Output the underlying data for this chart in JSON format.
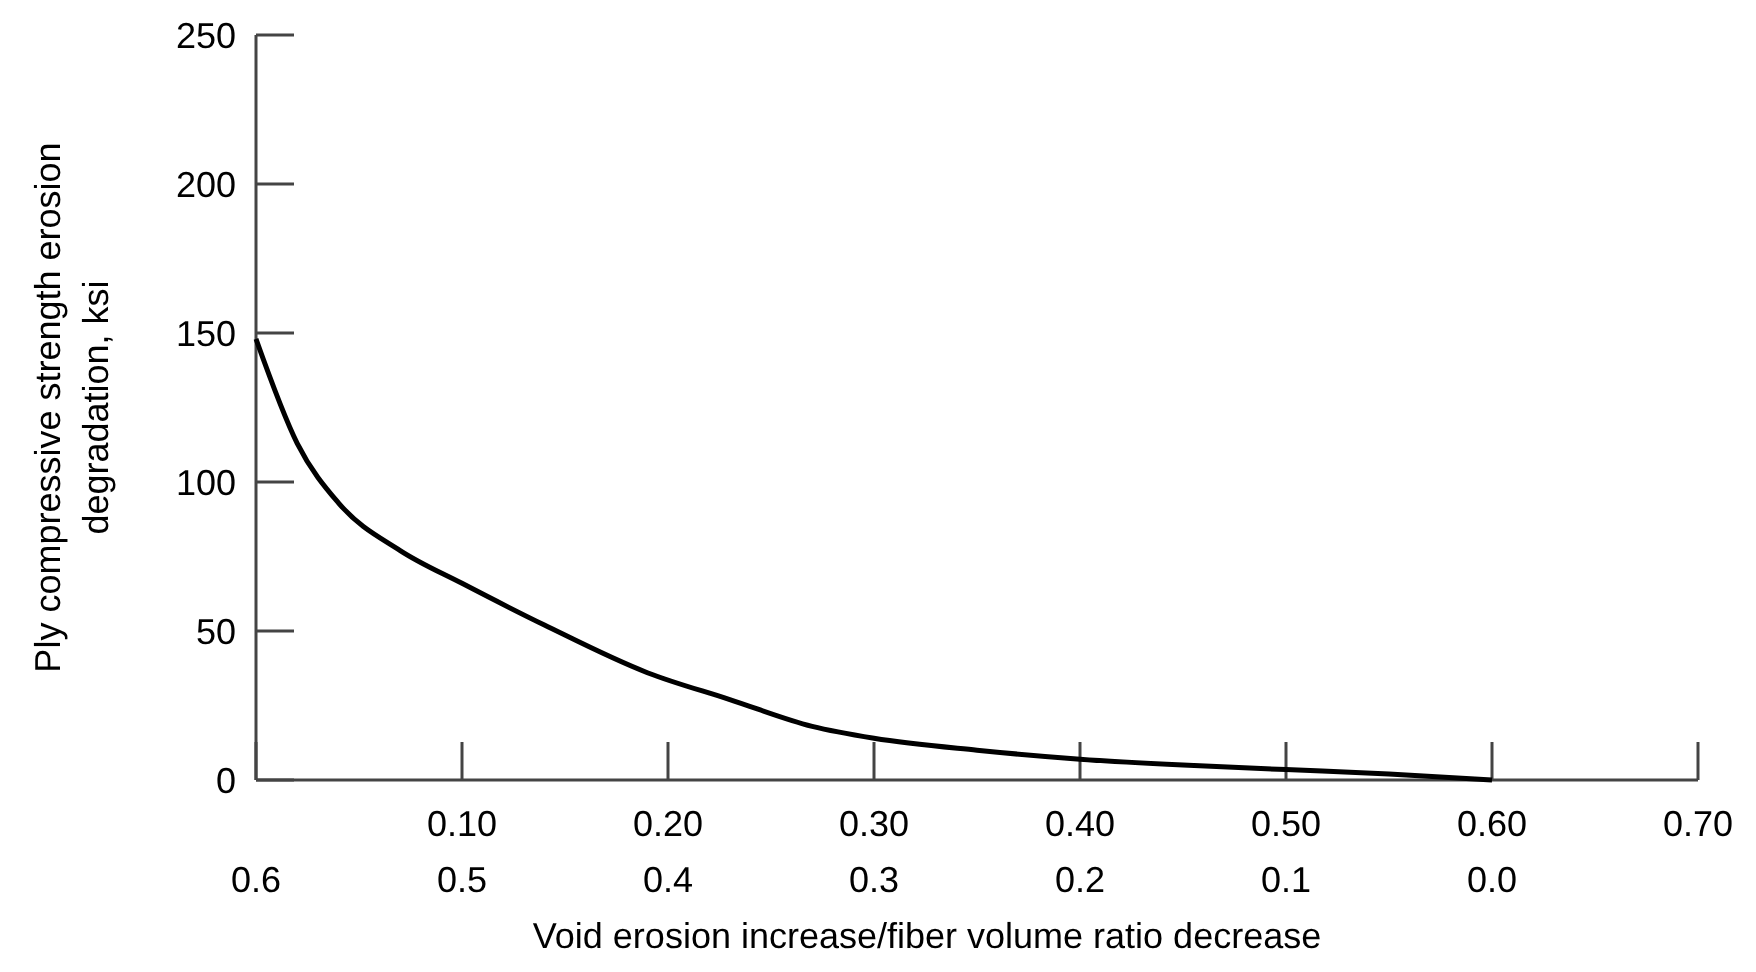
{
  "chart_data": {
    "type": "line",
    "xlabel": "Void erosion increase/fiber volume ratio decrease",
    "ylabel": "Ply compressive strength erosion\ndegradation, ksi",
    "x": [
      0,
      0.02,
      0.04,
      0.07,
      0.1,
      0.14,
      0.19,
      0.23,
      0.27,
      0.3,
      0.35,
      0.4,
      0.45,
      0.5,
      0.55,
      0.6
    ],
    "series": [
      {
        "color": "#000000",
        "values": [
          148,
          113,
          93,
          77,
          66,
          52,
          36,
          27,
          18,
          14,
          10,
          7,
          5,
          3.5,
          2,
          0
        ]
      }
    ],
    "xlim": [
      0,
      0.7
    ],
    "xticks": [
      {
        "value": 0,
        "label": null
      },
      {
        "value": 0.1,
        "label": "0.10"
      },
      {
        "value": 0.2,
        "label": "0.20"
      },
      {
        "value": 0.3,
        "label": "0.30"
      },
      {
        "value": 0.4,
        "label": "0.40"
      },
      {
        "value": 0.5,
        "label": "0.50"
      },
      {
        "value": 0.6,
        "label": "0.60"
      },
      {
        "value": 0.7,
        "label": "0.70"
      }
    ],
    "x2lim": [
      0.6,
      -0.1
    ],
    "x2ticks": [
      {
        "value": 0.6,
        "label": "0.6"
      },
      {
        "value": 0.5,
        "label": "0.5"
      },
      {
        "value": 0.4,
        "label": "0.4"
      },
      {
        "value": 0.3,
        "label": "0.3"
      },
      {
        "value": 0.2,
        "label": "0.2"
      },
      {
        "value": 0.1,
        "label": "0.1"
      },
      {
        "value": 0,
        "label": "0.0"
      }
    ],
    "ylim": [
      0,
      250
    ],
    "yticks": [
      0,
      50,
      100,
      150,
      200,
      250
    ],
    "grid": false,
    "marker": "none",
    "line_style": "solid"
  }
}
